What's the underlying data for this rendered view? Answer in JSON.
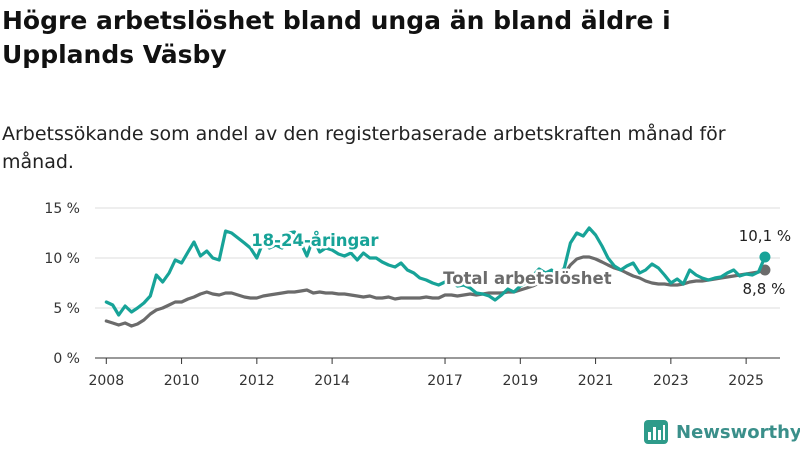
{
  "chart_data": {
    "type": "line",
    "title": "Högre arbetslöshet bland unga än bland äldre i Upplands Väsby",
    "subtitle": "Arbetssökande som andel av den registerbaserade arbetskraften månad för månad.",
    "xlabel": "",
    "ylabel": "",
    "ylim": [
      0,
      15
    ],
    "xlim": [
      2007.7,
      2025.9
    ],
    "x_ticks": [
      {
        "value": 2008,
        "label": "2008"
      },
      {
        "value": 2010,
        "label": "2010"
      },
      {
        "value": 2012,
        "label": "2012"
      },
      {
        "value": 2014,
        "label": "2014"
      },
      {
        "value": 2017,
        "label": "2017"
      },
      {
        "value": 2019,
        "label": "2019"
      },
      {
        "value": 2021,
        "label": "2021"
      },
      {
        "value": 2023,
        "label": "2023"
      },
      {
        "value": 2025,
        "label": "2025"
      }
    ],
    "y_ticks": [
      {
        "value": 0,
        "label": "0 %"
      },
      {
        "value": 5,
        "label": "5 %"
      },
      {
        "value": 10,
        "label": "10 %"
      },
      {
        "value": 15,
        "label": "15 %"
      }
    ],
    "grid": true,
    "series": [
      {
        "name": "18-24-åringar",
        "color": "#17a398",
        "end_label": "10,1 %",
        "points": [
          [
            2008.0,
            5.6
          ],
          [
            2008.17,
            5.3
          ],
          [
            2008.33,
            4.3
          ],
          [
            2008.5,
            5.2
          ],
          [
            2008.67,
            4.6
          ],
          [
            2008.83,
            5.0
          ],
          [
            2009.0,
            5.5
          ],
          [
            2009.17,
            6.2
          ],
          [
            2009.33,
            8.3
          ],
          [
            2009.5,
            7.6
          ],
          [
            2009.67,
            8.5
          ],
          [
            2009.83,
            9.8
          ],
          [
            2010.0,
            9.5
          ],
          [
            2010.17,
            10.6
          ],
          [
            2010.33,
            11.6
          ],
          [
            2010.5,
            10.2
          ],
          [
            2010.67,
            10.7
          ],
          [
            2010.83,
            10.0
          ],
          [
            2011.0,
            9.8
          ],
          [
            2011.17,
            12.7
          ],
          [
            2011.33,
            12.5
          ],
          [
            2011.5,
            12.0
          ],
          [
            2011.67,
            11.5
          ],
          [
            2011.83,
            11.0
          ],
          [
            2012.0,
            10.0
          ],
          [
            2012.17,
            11.6
          ],
          [
            2012.33,
            11.0
          ],
          [
            2012.5,
            11.3
          ],
          [
            2012.67,
            11.0
          ],
          [
            2012.83,
            12.5
          ],
          [
            2013.0,
            12.6
          ],
          [
            2013.17,
            11.5
          ],
          [
            2013.33,
            10.2
          ],
          [
            2013.5,
            12.0
          ],
          [
            2013.67,
            10.6
          ],
          [
            2013.83,
            11.0
          ],
          [
            2014.0,
            10.8
          ],
          [
            2014.17,
            10.4
          ],
          [
            2014.33,
            10.2
          ],
          [
            2014.5,
            10.5
          ],
          [
            2014.67,
            9.8
          ],
          [
            2014.83,
            10.5
          ],
          [
            2015.0,
            10.0
          ],
          [
            2015.17,
            10.0
          ],
          [
            2015.33,
            9.6
          ],
          [
            2015.5,
            9.3
          ],
          [
            2015.67,
            9.1
          ],
          [
            2015.83,
            9.5
          ],
          [
            2016.0,
            8.8
          ],
          [
            2016.17,
            8.5
          ],
          [
            2016.33,
            8.0
          ],
          [
            2016.5,
            7.8
          ],
          [
            2016.67,
            7.5
          ],
          [
            2016.83,
            7.3
          ],
          [
            2017.0,
            7.6
          ],
          [
            2017.17,
            7.8
          ],
          [
            2017.33,
            7.2
          ],
          [
            2017.5,
            7.3
          ],
          [
            2017.67,
            7.0
          ],
          [
            2017.83,
            6.5
          ],
          [
            2018.0,
            6.4
          ],
          [
            2018.17,
            6.2
          ],
          [
            2018.33,
            5.8
          ],
          [
            2018.5,
            6.3
          ],
          [
            2018.67,
            6.9
          ],
          [
            2018.83,
            6.6
          ],
          [
            2019.0,
            7.2
          ],
          [
            2019.17,
            7.6
          ],
          [
            2019.33,
            8.2
          ],
          [
            2019.5,
            8.9
          ],
          [
            2019.67,
            8.5
          ],
          [
            2019.83,
            8.8
          ],
          [
            2020.0,
            8.3
          ],
          [
            2020.17,
            9.0
          ],
          [
            2020.33,
            11.5
          ],
          [
            2020.5,
            12.5
          ],
          [
            2020.67,
            12.2
          ],
          [
            2020.83,
            13.0
          ],
          [
            2021.0,
            12.3
          ],
          [
            2021.17,
            11.2
          ],
          [
            2021.33,
            10.0
          ],
          [
            2021.5,
            9.2
          ],
          [
            2021.67,
            8.8
          ],
          [
            2021.83,
            9.2
          ],
          [
            2022.0,
            9.5
          ],
          [
            2022.17,
            8.5
          ],
          [
            2022.33,
            8.8
          ],
          [
            2022.5,
            9.4
          ],
          [
            2022.67,
            9.0
          ],
          [
            2022.83,
            8.3
          ],
          [
            2023.0,
            7.5
          ],
          [
            2023.17,
            7.9
          ],
          [
            2023.33,
            7.4
          ],
          [
            2023.5,
            8.8
          ],
          [
            2023.67,
            8.3
          ],
          [
            2023.83,
            8.0
          ],
          [
            2024.0,
            7.8
          ],
          [
            2024.17,
            8.0
          ],
          [
            2024.33,
            8.1
          ],
          [
            2024.5,
            8.5
          ],
          [
            2024.67,
            8.8
          ],
          [
            2024.83,
            8.2
          ],
          [
            2025.0,
            8.4
          ],
          [
            2025.17,
            8.3
          ],
          [
            2025.33,
            8.6
          ],
          [
            2025.5,
            10.1
          ]
        ]
      },
      {
        "name": "Total arbetslöshet",
        "color": "#6b6b6b",
        "end_label": "8,8 %",
        "points": [
          [
            2008.0,
            3.7
          ],
          [
            2008.17,
            3.5
          ],
          [
            2008.33,
            3.3
          ],
          [
            2008.5,
            3.5
          ],
          [
            2008.67,
            3.2
          ],
          [
            2008.83,
            3.4
          ],
          [
            2009.0,
            3.8
          ],
          [
            2009.17,
            4.4
          ],
          [
            2009.33,
            4.8
          ],
          [
            2009.5,
            5.0
          ],
          [
            2009.67,
            5.3
          ],
          [
            2009.83,
            5.6
          ],
          [
            2010.0,
            5.6
          ],
          [
            2010.17,
            5.9
          ],
          [
            2010.33,
            6.1
          ],
          [
            2010.5,
            6.4
          ],
          [
            2010.67,
            6.6
          ],
          [
            2010.83,
            6.4
          ],
          [
            2011.0,
            6.3
          ],
          [
            2011.17,
            6.5
          ],
          [
            2011.33,
            6.5
          ],
          [
            2011.5,
            6.3
          ],
          [
            2011.67,
            6.1
          ],
          [
            2011.83,
            6.0
          ],
          [
            2012.0,
            6.0
          ],
          [
            2012.17,
            6.2
          ],
          [
            2012.33,
            6.3
          ],
          [
            2012.5,
            6.4
          ],
          [
            2012.67,
            6.5
          ],
          [
            2012.83,
            6.6
          ],
          [
            2013.0,
            6.6
          ],
          [
            2013.17,
            6.7
          ],
          [
            2013.33,
            6.8
          ],
          [
            2013.5,
            6.5
          ],
          [
            2013.67,
            6.6
          ],
          [
            2013.83,
            6.5
          ],
          [
            2014.0,
            6.5
          ],
          [
            2014.17,
            6.4
          ],
          [
            2014.33,
            6.4
          ],
          [
            2014.5,
            6.3
          ],
          [
            2014.67,
            6.2
          ],
          [
            2014.83,
            6.1
          ],
          [
            2015.0,
            6.2
          ],
          [
            2015.17,
            6.0
          ],
          [
            2015.33,
            6.0
          ],
          [
            2015.5,
            6.1
          ],
          [
            2015.67,
            5.9
          ],
          [
            2015.83,
            6.0
          ],
          [
            2016.0,
            6.0
          ],
          [
            2016.17,
            6.0
          ],
          [
            2016.33,
            6.0
          ],
          [
            2016.5,
            6.1
          ],
          [
            2016.67,
            6.0
          ],
          [
            2016.83,
            6.0
          ],
          [
            2017.0,
            6.3
          ],
          [
            2017.17,
            6.3
          ],
          [
            2017.33,
            6.2
          ],
          [
            2017.5,
            6.3
          ],
          [
            2017.67,
            6.4
          ],
          [
            2017.83,
            6.3
          ],
          [
            2018.0,
            6.4
          ],
          [
            2018.17,
            6.5
          ],
          [
            2018.33,
            6.5
          ],
          [
            2018.5,
            6.5
          ],
          [
            2018.67,
            6.6
          ],
          [
            2018.83,
            6.6
          ],
          [
            2019.0,
            6.8
          ],
          [
            2019.17,
            7.0
          ],
          [
            2019.33,
            7.2
          ],
          [
            2019.5,
            7.5
          ],
          [
            2019.67,
            7.6
          ],
          [
            2019.83,
            7.8
          ],
          [
            2020.0,
            8.0
          ],
          [
            2020.17,
            8.4
          ],
          [
            2020.33,
            9.3
          ],
          [
            2020.5,
            9.9
          ],
          [
            2020.67,
            10.1
          ],
          [
            2020.83,
            10.1
          ],
          [
            2021.0,
            9.9
          ],
          [
            2021.17,
            9.6
          ],
          [
            2021.33,
            9.3
          ],
          [
            2021.5,
            9.0
          ],
          [
            2021.67,
            8.8
          ],
          [
            2021.83,
            8.5
          ],
          [
            2022.0,
            8.2
          ],
          [
            2022.17,
            8.0
          ],
          [
            2022.33,
            7.7
          ],
          [
            2022.5,
            7.5
          ],
          [
            2022.67,
            7.4
          ],
          [
            2022.83,
            7.4
          ],
          [
            2023.0,
            7.3
          ],
          [
            2023.17,
            7.3
          ],
          [
            2023.33,
            7.4
          ],
          [
            2023.5,
            7.6
          ],
          [
            2023.67,
            7.7
          ],
          [
            2023.83,
            7.7
          ],
          [
            2024.0,
            7.8
          ],
          [
            2024.17,
            7.9
          ],
          [
            2024.33,
            8.0
          ],
          [
            2024.5,
            8.1
          ],
          [
            2024.67,
            8.2
          ],
          [
            2024.83,
            8.3
          ],
          [
            2025.0,
            8.4
          ],
          [
            2025.17,
            8.5
          ],
          [
            2025.33,
            8.6
          ],
          [
            2025.5,
            8.8
          ]
        ]
      }
    ]
  },
  "branding": {
    "name": "Newsworthy"
  }
}
